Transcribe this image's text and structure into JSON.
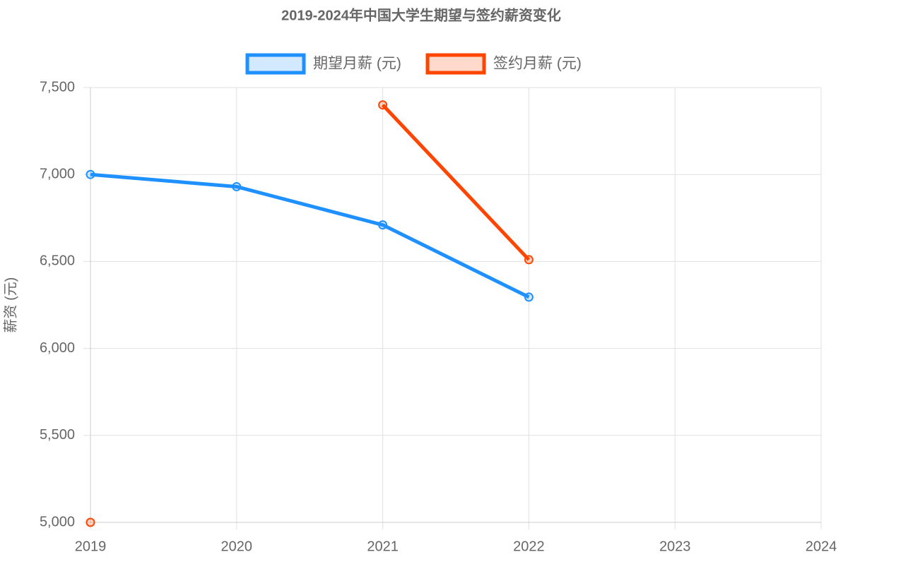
{
  "chart_data": {
    "type": "line",
    "title": "2019-2024年中国大学生期望与签约薪资变化",
    "y_label": "薪资 (元)",
    "categories": [
      "2019",
      "2020",
      "2021",
      "2022",
      "2023",
      "2024"
    ],
    "series": [
      {
        "name": "期望月薪 (元)",
        "color": "#1e90ff",
        "values": [
          7000,
          6930,
          6710,
          6295,
          null,
          null
        ]
      },
      {
        "name": "签约月薪 (元)",
        "color": "#ff4500",
        "values": [
          5000,
          null,
          7400,
          6510,
          null,
          null
        ]
      }
    ],
    "ylim": [
      5000,
      7500
    ],
    "yticks": [
      {
        "value": 5000,
        "label": "5,000"
      },
      {
        "value": 5500,
        "label": "5,500"
      },
      {
        "value": 6000,
        "label": "6,000"
      },
      {
        "value": 6500,
        "label": "6,500"
      },
      {
        "value": 7000,
        "label": "7,000"
      },
      {
        "value": 7500,
        "label": "7,500"
      }
    ],
    "grid": true,
    "legend": "top"
  }
}
